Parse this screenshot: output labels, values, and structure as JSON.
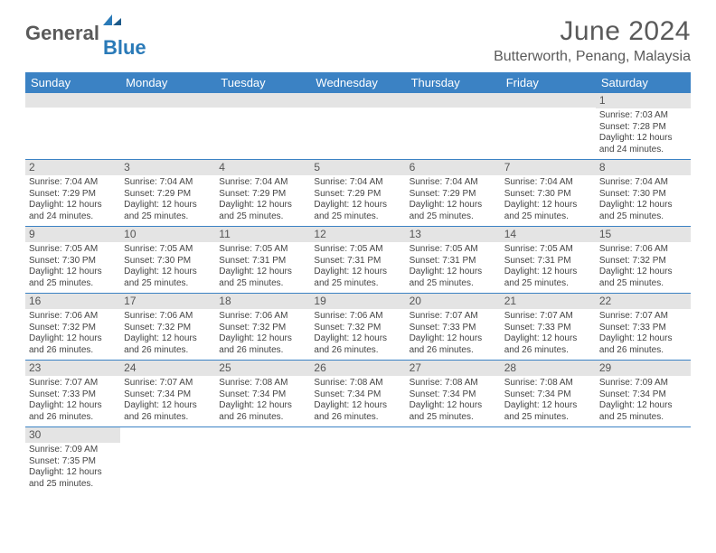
{
  "logo": {
    "text1": "General",
    "text2": "Blue"
  },
  "title": "June 2024",
  "location": "Butterworth, Penang, Malaysia",
  "colors": {
    "header_bg": "#3b82c4",
    "header_text": "#ffffff",
    "daynum_bg": "#e4e4e4",
    "border": "#3b82c4",
    "body_text": "#444444",
    "title_text": "#5a5a5a",
    "logo_gray": "#5a5a5a",
    "logo_blue": "#2a7ab8"
  },
  "day_names": [
    "Sunday",
    "Monday",
    "Tuesday",
    "Wednesday",
    "Thursday",
    "Friday",
    "Saturday"
  ],
  "weeks": [
    [
      null,
      null,
      null,
      null,
      null,
      null,
      {
        "n": "1",
        "sr": "7:03 AM",
        "ss": "7:28 PM",
        "dl": "12 hours and 24 minutes."
      }
    ],
    [
      {
        "n": "2",
        "sr": "7:04 AM",
        "ss": "7:29 PM",
        "dl": "12 hours and 24 minutes."
      },
      {
        "n": "3",
        "sr": "7:04 AM",
        "ss": "7:29 PM",
        "dl": "12 hours and 25 minutes."
      },
      {
        "n": "4",
        "sr": "7:04 AM",
        "ss": "7:29 PM",
        "dl": "12 hours and 25 minutes."
      },
      {
        "n": "5",
        "sr": "7:04 AM",
        "ss": "7:29 PM",
        "dl": "12 hours and 25 minutes."
      },
      {
        "n": "6",
        "sr": "7:04 AM",
        "ss": "7:29 PM",
        "dl": "12 hours and 25 minutes."
      },
      {
        "n": "7",
        "sr": "7:04 AM",
        "ss": "7:30 PM",
        "dl": "12 hours and 25 minutes."
      },
      {
        "n": "8",
        "sr": "7:04 AM",
        "ss": "7:30 PM",
        "dl": "12 hours and 25 minutes."
      }
    ],
    [
      {
        "n": "9",
        "sr": "7:05 AM",
        "ss": "7:30 PM",
        "dl": "12 hours and 25 minutes."
      },
      {
        "n": "10",
        "sr": "7:05 AM",
        "ss": "7:30 PM",
        "dl": "12 hours and 25 minutes."
      },
      {
        "n": "11",
        "sr": "7:05 AM",
        "ss": "7:31 PM",
        "dl": "12 hours and 25 minutes."
      },
      {
        "n": "12",
        "sr": "7:05 AM",
        "ss": "7:31 PM",
        "dl": "12 hours and 25 minutes."
      },
      {
        "n": "13",
        "sr": "7:05 AM",
        "ss": "7:31 PM",
        "dl": "12 hours and 25 minutes."
      },
      {
        "n": "14",
        "sr": "7:05 AM",
        "ss": "7:31 PM",
        "dl": "12 hours and 25 minutes."
      },
      {
        "n": "15",
        "sr": "7:06 AM",
        "ss": "7:32 PM",
        "dl": "12 hours and 25 minutes."
      }
    ],
    [
      {
        "n": "16",
        "sr": "7:06 AM",
        "ss": "7:32 PM",
        "dl": "12 hours and 26 minutes."
      },
      {
        "n": "17",
        "sr": "7:06 AM",
        "ss": "7:32 PM",
        "dl": "12 hours and 26 minutes."
      },
      {
        "n": "18",
        "sr": "7:06 AM",
        "ss": "7:32 PM",
        "dl": "12 hours and 26 minutes."
      },
      {
        "n": "19",
        "sr": "7:06 AM",
        "ss": "7:32 PM",
        "dl": "12 hours and 26 minutes."
      },
      {
        "n": "20",
        "sr": "7:07 AM",
        "ss": "7:33 PM",
        "dl": "12 hours and 26 minutes."
      },
      {
        "n": "21",
        "sr": "7:07 AM",
        "ss": "7:33 PM",
        "dl": "12 hours and 26 minutes."
      },
      {
        "n": "22",
        "sr": "7:07 AM",
        "ss": "7:33 PM",
        "dl": "12 hours and 26 minutes."
      }
    ],
    [
      {
        "n": "23",
        "sr": "7:07 AM",
        "ss": "7:33 PM",
        "dl": "12 hours and 26 minutes."
      },
      {
        "n": "24",
        "sr": "7:07 AM",
        "ss": "7:34 PM",
        "dl": "12 hours and 26 minutes."
      },
      {
        "n": "25",
        "sr": "7:08 AM",
        "ss": "7:34 PM",
        "dl": "12 hours and 26 minutes."
      },
      {
        "n": "26",
        "sr": "7:08 AM",
        "ss": "7:34 PM",
        "dl": "12 hours and 26 minutes."
      },
      {
        "n": "27",
        "sr": "7:08 AM",
        "ss": "7:34 PM",
        "dl": "12 hours and 25 minutes."
      },
      {
        "n": "28",
        "sr": "7:08 AM",
        "ss": "7:34 PM",
        "dl": "12 hours and 25 minutes."
      },
      {
        "n": "29",
        "sr": "7:09 AM",
        "ss": "7:34 PM",
        "dl": "12 hours and 25 minutes."
      }
    ],
    [
      {
        "n": "30",
        "sr": "7:09 AM",
        "ss": "7:35 PM",
        "dl": "12 hours and 25 minutes."
      },
      null,
      null,
      null,
      null,
      null,
      null
    ]
  ],
  "labels": {
    "sunrise": "Sunrise:",
    "sunset": "Sunset:",
    "daylight": "Daylight:"
  }
}
